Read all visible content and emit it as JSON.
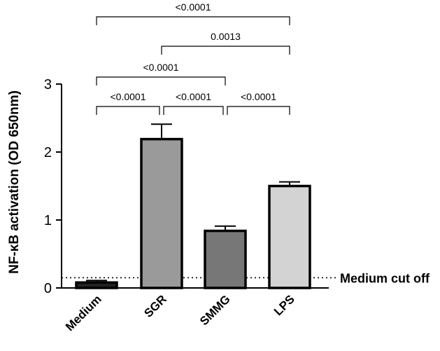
{
  "chart_data": {
    "type": "bar",
    "ylabel": "NF-κB activation (OD 650nm)",
    "categories": [
      "Medium",
      "SGR",
      "SMMG",
      "LPS"
    ],
    "values": [
      0.08,
      2.19,
      0.84,
      1.5
    ],
    "errors": [
      0.03,
      0.22,
      0.07,
      0.06
    ],
    "bar_colors": [
      "#222222",
      "#9a9a9a",
      "#777777",
      "#d3d3d3"
    ],
    "ylim": [
      0,
      3
    ],
    "yticks": [
      "0",
      "1",
      "2",
      "3"
    ],
    "ytick_values": [
      0,
      1,
      2,
      3
    ],
    "cutoff": {
      "value": 0.15,
      "label": "Medium cut off"
    },
    "comparisons": [
      {
        "from": 0,
        "to": 1,
        "label": "<0.0001"
      },
      {
        "from": 1,
        "to": 2,
        "label": "<0.0001"
      },
      {
        "from": 2,
        "to": 3,
        "label": "<0.0001"
      },
      {
        "from": 0,
        "to": 2,
        "label": "<0.0001"
      },
      {
        "from": 1,
        "to": 3,
        "label": "0.0013"
      },
      {
        "from": 0,
        "to": 3,
        "label": "<0.0001"
      }
    ]
  }
}
